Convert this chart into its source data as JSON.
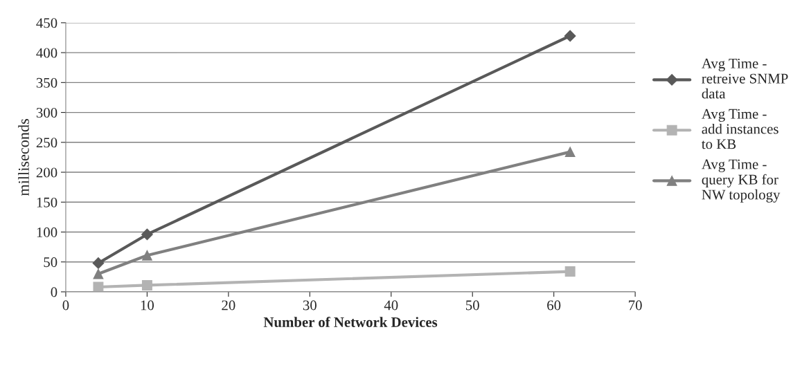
{
  "chart_data": {
    "type": "line",
    "xlabel": "Number of Network Devices",
    "ylabel": "milliseconds",
    "xlim": [
      0,
      70
    ],
    "xticks": [
      0,
      10,
      20,
      30,
      40,
      50,
      60,
      70
    ],
    "ylim": [
      0,
      450
    ],
    "yticks": [
      0,
      50,
      100,
      150,
      200,
      250,
      300,
      350,
      400,
      450
    ],
    "grid": "y",
    "legend": "right",
    "series": [
      {
        "name": "Avg Time - retreive SNMP data",
        "color": "#595959",
        "marker": "diamond",
        "x": [
          4,
          10,
          62
        ],
        "values": [
          48,
          96,
          428
        ]
      },
      {
        "name": "Avg Time - add instances to KB",
        "color": "#b3b3b3",
        "marker": "square",
        "x": [
          4,
          10,
          62
        ],
        "values": [
          8,
          11,
          34
        ]
      },
      {
        "name": "Avg Time - query KB for NW topology",
        "color": "#808080",
        "marker": "triangle",
        "x": [
          4,
          10,
          62
        ],
        "values": [
          30,
          61,
          234
        ]
      }
    ]
  }
}
